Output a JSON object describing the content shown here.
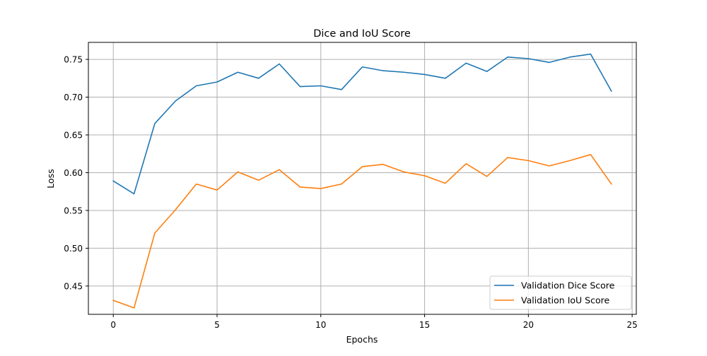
{
  "chart_data": {
    "type": "line",
    "title": "Dice and IoU Score",
    "xlabel": "Epochs",
    "ylabel": "Loss",
    "xlim": [
      -1.2,
      25.2
    ],
    "ylim": [
      0.4125,
      0.7725
    ],
    "xticks": [
      0,
      5,
      10,
      15,
      20,
      25
    ],
    "yticks": [
      0.45,
      0.5,
      0.55,
      0.6,
      0.65,
      0.7,
      0.75
    ],
    "grid": true,
    "legend_position": "lower-right",
    "x": [
      0,
      1,
      2,
      3,
      4,
      5,
      6,
      7,
      8,
      9,
      10,
      11,
      12,
      13,
      14,
      15,
      16,
      17,
      18,
      19,
      20,
      21,
      22,
      23,
      24
    ],
    "series": [
      {
        "name": "Validation Dice Score",
        "color": "#1f77b4",
        "values": [
          0.589,
          0.572,
          0.665,
          0.695,
          0.715,
          0.72,
          0.733,
          0.725,
          0.744,
          0.714,
          0.715,
          0.71,
          0.74,
          0.735,
          0.733,
          0.73,
          0.725,
          0.745,
          0.734,
          0.753,
          0.751,
          0.746,
          0.753,
          0.757,
          0.708
        ]
      },
      {
        "name": "Validation IoU Score",
        "color": "#ff7f0e",
        "values": [
          0.431,
          0.421,
          0.52,
          0.551,
          0.585,
          0.577,
          0.601,
          0.59,
          0.604,
          0.581,
          0.579,
          0.585,
          0.608,
          0.611,
          0.601,
          0.596,
          0.586,
          0.612,
          0.595,
          0.62,
          0.616,
          0.609,
          0.616,
          0.624,
          0.585
        ]
      }
    ]
  }
}
